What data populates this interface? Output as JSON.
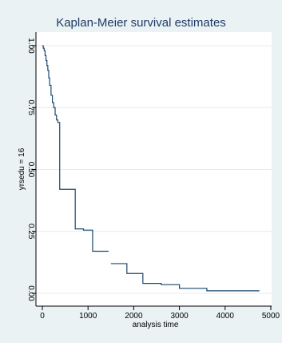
{
  "chart_data": {
    "type": "line",
    "title": "Kaplan-Meier survival estimates",
    "xlabel": "analysis time",
    "ylabel": "yrsedu = 16",
    "xlim": [
      0,
      5000
    ],
    "ylim": [
      0,
      1
    ],
    "xticks": [
      "0",
      "1000",
      "2000",
      "3000",
      "4000",
      "5000"
    ],
    "yticks": [
      "0.00",
      "0.25",
      "0.50",
      "0.75",
      "1.00"
    ],
    "grid": true,
    "series": [
      {
        "name": "",
        "color": "#1a476f",
        "steps": [
          [
            0,
            1.0
          ],
          [
            20,
            0.99
          ],
          [
            40,
            0.98
          ],
          [
            60,
            0.96
          ],
          [
            80,
            0.94
          ],
          [
            100,
            0.92
          ],
          [
            120,
            0.9
          ],
          [
            140,
            0.87
          ],
          [
            160,
            0.84
          ],
          [
            190,
            0.8
          ],
          [
            220,
            0.77
          ],
          [
            250,
            0.75
          ],
          [
            280,
            0.72
          ],
          [
            310,
            0.7
          ],
          [
            340,
            0.69
          ],
          [
            380,
            0.42
          ],
          [
            720,
            0.26
          ],
          [
            900,
            0.255
          ],
          [
            1100,
            0.17
          ],
          [
            1500,
            0.12
          ],
          [
            1850,
            0.08
          ],
          [
            2200,
            0.04
          ],
          [
            2600,
            0.035
          ],
          [
            3000,
            0.02
          ],
          [
            3600,
            0.01
          ],
          [
            4750,
            0.01
          ]
        ],
        "censored_gaps": [
          [
            1450,
            1500
          ]
        ]
      }
    ]
  }
}
